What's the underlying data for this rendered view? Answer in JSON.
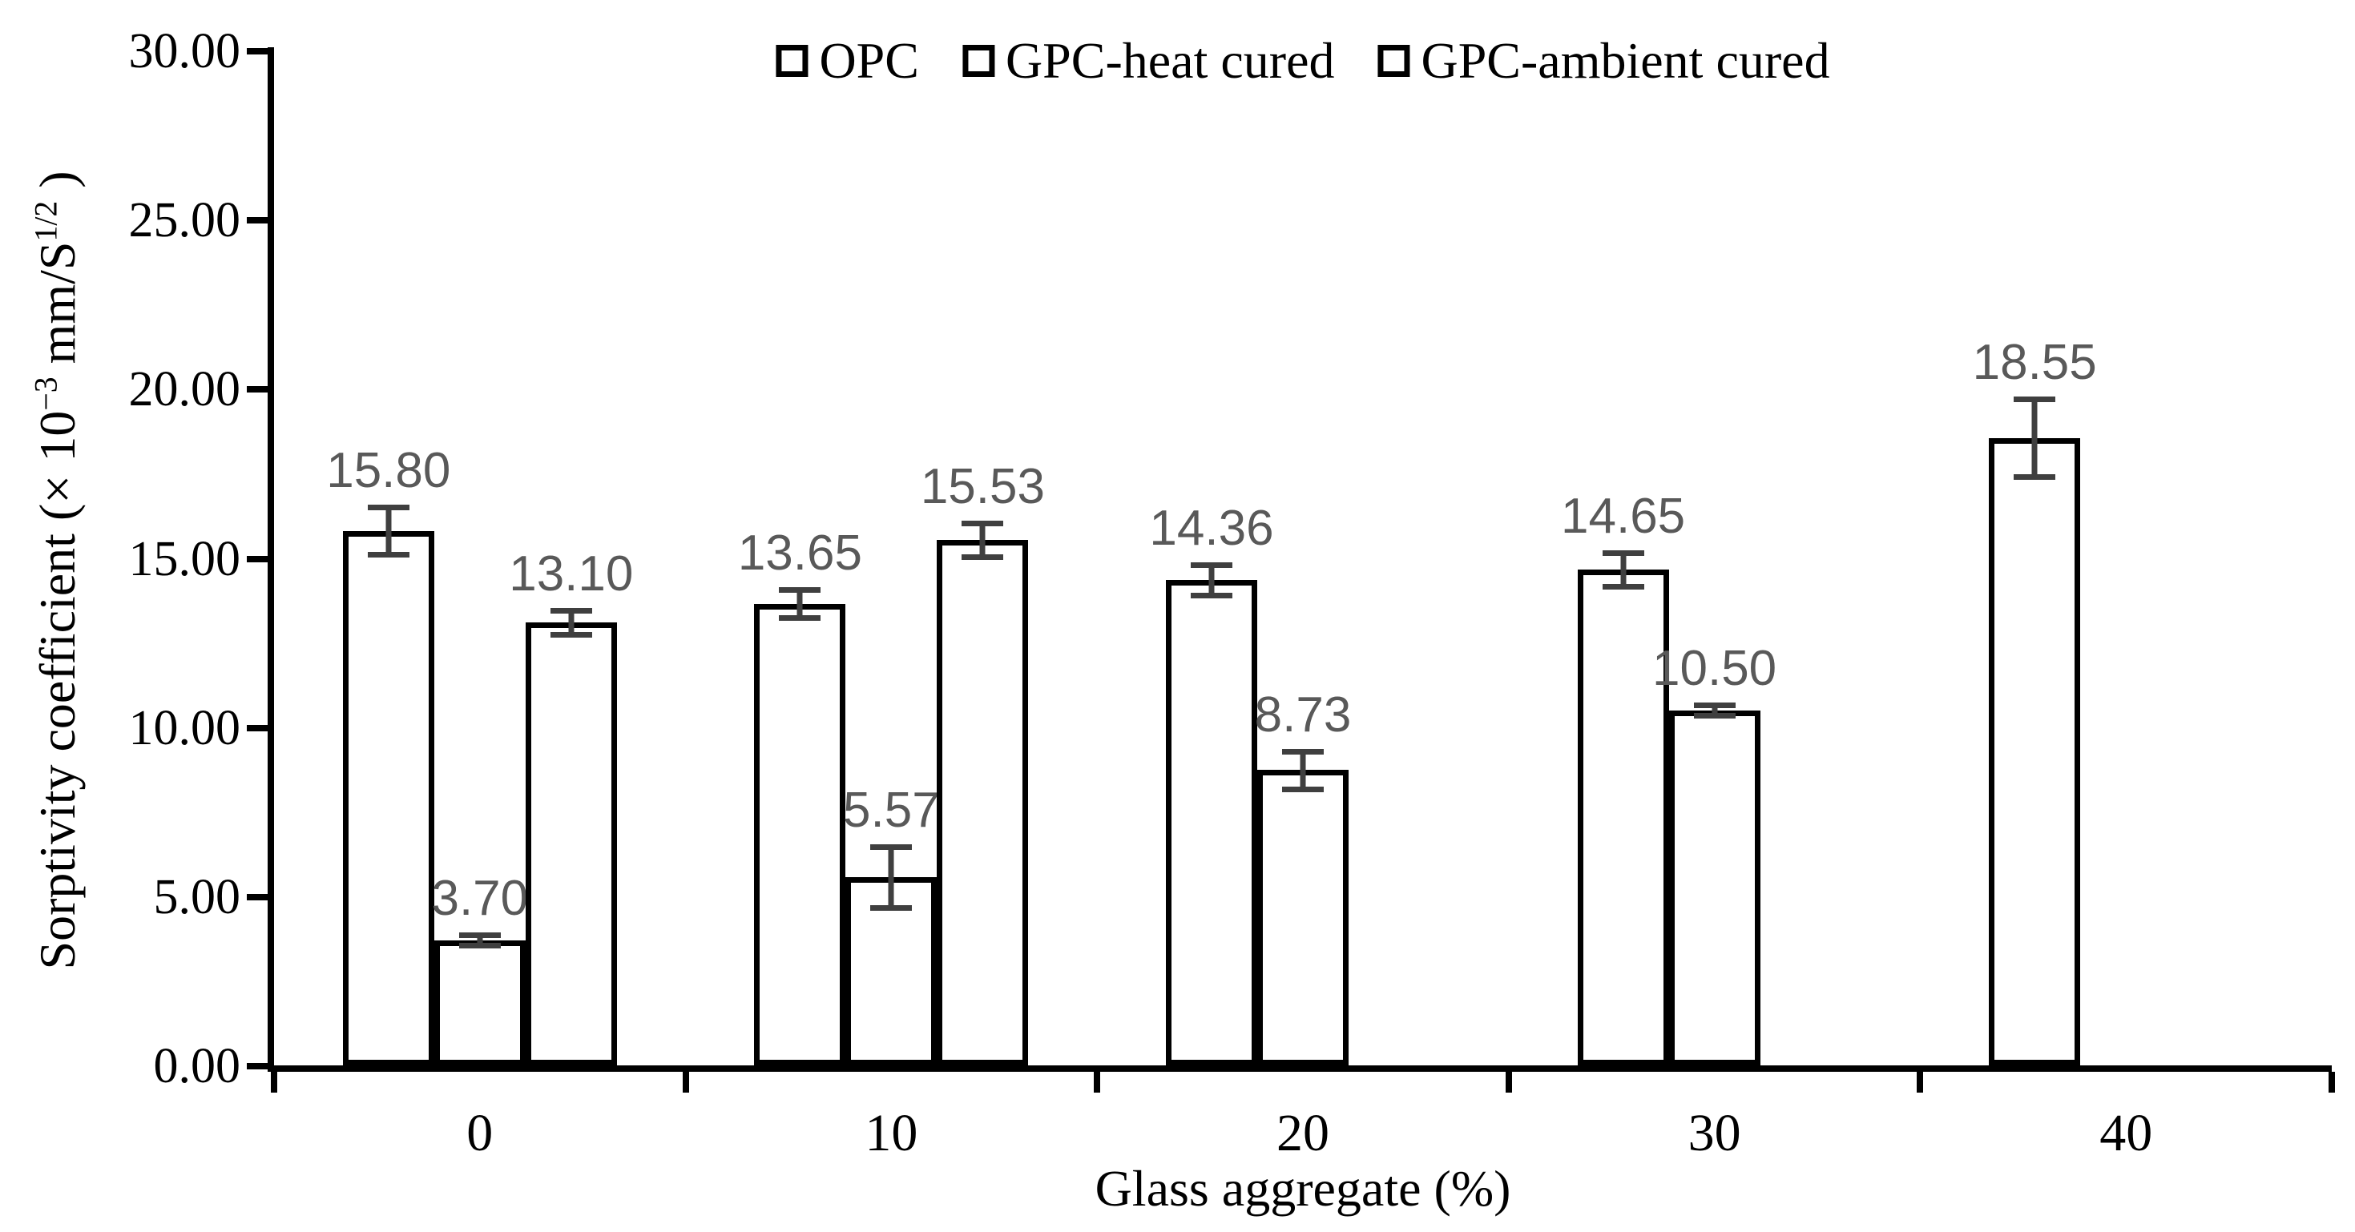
{
  "chart_data": {
    "type": "bar",
    "title": "",
    "xlabel": "Glass aggregate (%)",
    "ylabel_parts": {
      "pre": "Sorptivity coefficient (× 10",
      "sup1": "−3",
      "mid": " mm/S",
      "sup2": "1/2",
      "post": " )"
    },
    "ylim": [
      0,
      30
    ],
    "ytick_labels": [
      "30.00",
      "25.00",
      "20.00",
      "15.00",
      "10.00",
      "5.00",
      "0.00"
    ],
    "ytick_values": [
      30,
      25,
      20,
      15,
      10,
      5,
      0
    ],
    "categories": [
      "0",
      "10",
      "20",
      "30",
      "40"
    ],
    "grid": false,
    "legend_position": "top",
    "series": [
      {
        "name": "OPC",
        "pattern": "checker",
        "color": "#1AA7EC",
        "values": [
          15.8,
          13.65,
          14.36,
          14.65,
          18.55
        ],
        "labels": [
          "15.80",
          "13.65",
          "14.36",
          "14.65",
          "18.55"
        ],
        "errors_est": [
          0.7,
          0.42,
          0.45,
          0.5,
          1.15
        ]
      },
      {
        "name": "GPC-heat cured",
        "pattern": "lattice",
        "color": "#FE0000",
        "values": [
          3.7,
          5.57,
          8.73,
          10.5,
          null
        ],
        "labels": [
          "3.70",
          "5.57",
          "8.73",
          "10.50",
          null
        ],
        "errors_est": [
          0.15,
          0.9,
          0.55,
          0.15,
          null
        ]
      },
      {
        "name": "GPC-ambient cured",
        "pattern": "dots",
        "color": "#21A24D",
        "values": [
          13.1,
          15.53,
          null,
          null,
          null
        ],
        "labels": [
          "13.10",
          "15.53",
          null,
          null,
          null
        ],
        "errors_est": [
          0.35,
          0.5,
          null,
          null,
          null
        ]
      }
    ],
    "colors": {
      "axis": "#000000",
      "error_bar": "#3F3F3F",
      "value_label": "#595959",
      "background": "#FFFFFF"
    }
  }
}
